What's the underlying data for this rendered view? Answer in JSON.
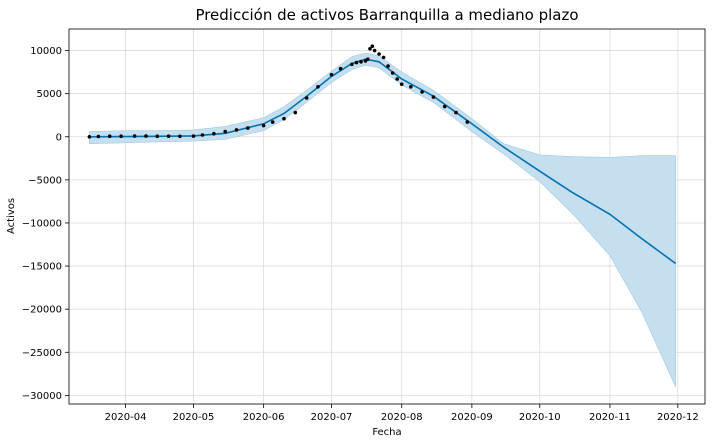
{
  "chart_data": {
    "type": "line",
    "title": "Predicción de activos Barranquilla a mediano plazo",
    "xlabel": "Fecha",
    "ylabel": "Activos",
    "x_range": [
      "2020-03-07",
      "2020-12-13"
    ],
    "ylim": [
      -31000,
      12500
    ],
    "grid": true,
    "x_ticks": [
      "2020-04",
      "2020-05",
      "2020-06",
      "2020-07",
      "2020-08",
      "2020-09",
      "2020-10",
      "2020-11",
      "2020-12"
    ],
    "y_ticks": [
      10000,
      5000,
      0,
      -5000,
      -10000,
      -15000,
      -20000,
      -25000,
      -30000
    ],
    "colors": {
      "forecast": "#0072B2",
      "band": "#c6dfef",
      "band_edge": "#9ecae1",
      "observed": "#000000"
    },
    "forecast": {
      "x": [
        "2020-03-16",
        "2020-04-01",
        "2020-04-15",
        "2020-05-01",
        "2020-05-15",
        "2020-06-01",
        "2020-06-10",
        "2020-06-20",
        "2020-07-01",
        "2020-07-10",
        "2020-07-16",
        "2020-07-22",
        "2020-08-01",
        "2020-08-15",
        "2020-09-01",
        "2020-09-15",
        "2020-10-01",
        "2020-10-15",
        "2020-11-01",
        "2020-11-15",
        "2020-11-30"
      ],
      "yhat": [
        0,
        20,
        50,
        100,
        400,
        1500,
        2700,
        4700,
        7000,
        8500,
        9000,
        8700,
        6700,
        4700,
        1500,
        -1200,
        -4000,
        -6400,
        -9000,
        -11800,
        -14700
      ],
      "lower": [
        -800,
        -700,
        -600,
        -500,
        -300,
        700,
        2000,
        4000,
        6300,
        7800,
        8300,
        8000,
        6000,
        4000,
        600,
        -2000,
        -5200,
        -8800,
        -13800,
        -20300,
        -29000
      ],
      "upper": [
        600,
        700,
        700,
        800,
        1200,
        2200,
        3500,
        5400,
        7600,
        9300,
        9700,
        9400,
        7500,
        5400,
        2100,
        -800,
        -2100,
        -2300,
        -2400,
        -2200,
        -2200
      ]
    },
    "observed": {
      "x": [
        "2020-03-16",
        "2020-03-20",
        "2020-03-25",
        "2020-03-30",
        "2020-04-05",
        "2020-04-10",
        "2020-04-15",
        "2020-04-20",
        "2020-04-25",
        "2020-05-01",
        "2020-05-05",
        "2020-05-10",
        "2020-05-15",
        "2020-05-20",
        "2020-05-25",
        "2020-06-01",
        "2020-06-05",
        "2020-06-10",
        "2020-06-15",
        "2020-06-20",
        "2020-06-25",
        "2020-07-01",
        "2020-07-05",
        "2020-07-10",
        "2020-07-12",
        "2020-07-14",
        "2020-07-16",
        "2020-07-17",
        "2020-07-18",
        "2020-07-19",
        "2020-07-20",
        "2020-07-22",
        "2020-07-24",
        "2020-07-26",
        "2020-07-28",
        "2020-07-30",
        "2020-08-01",
        "2020-08-05",
        "2020-08-10",
        "2020-08-15",
        "2020-08-20",
        "2020-08-25",
        "2020-08-30"
      ],
      "y": [
        0,
        30,
        60,
        60,
        80,
        80,
        70,
        60,
        50,
        80,
        200,
        350,
        600,
        800,
        1000,
        1300,
        1700,
        2100,
        2800,
        4500,
        5800,
        7200,
        7900,
        8400,
        8600,
        8700,
        8800,
        9000,
        10200,
        10500,
        10000,
        9600,
        9200,
        8200,
        7400,
        6700,
        6100,
        5800,
        5200,
        4600,
        3500,
        2800,
        1700
      ]
    }
  }
}
